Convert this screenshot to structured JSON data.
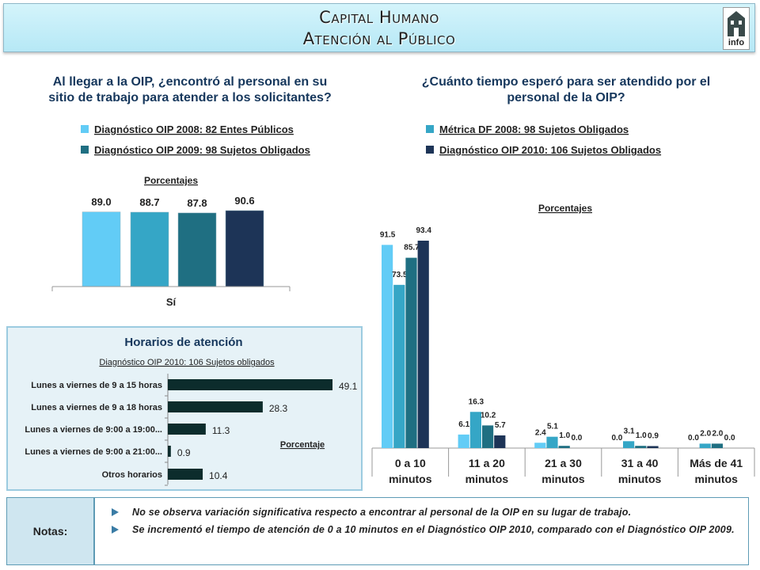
{
  "header": {
    "title_line1": "Capital Humano",
    "title_line2": "Atención al Público",
    "logo_text": "info"
  },
  "q1": {
    "line1": "Al llegar a la OIP, ¿encontró al personal en su",
    "line2": "sitio de trabajo para atender a los solicitantes?"
  },
  "q2": {
    "line1": "¿Cuánto tiempo esperó para ser atendido por el",
    "line2": "personal de la OIP?"
  },
  "notes": {
    "label": "Notas:",
    "items": [
      "No se observa variación significativa respecto a encontrar al personal de la OIP en su lugar de trabajo.",
      "Se incrementó el tiempo de atención de 0 a 10 minutos en el Diagnóstico OIP 2010, comparado con el Diagnóstico OIP 2009."
    ]
  },
  "colors": {
    "c1": "#62ccf6",
    "c2": "#35a6c6",
    "c3": "#1f6f82",
    "c4": "#1d3457",
    "hbar": "#0c2c2c"
  },
  "chart_data": [
    {
      "type": "bar",
      "subtitle": "Porcentajes",
      "categories": [
        "Sí"
      ],
      "legend": [
        "Diagnóstico OIP 2008: 82 Entes Públicos",
        "Diagnóstico OIP 2009: 98 Sujetos Obligados"
      ],
      "series": [
        {
          "values": [
            89.0
          ]
        },
        {
          "values": [
            88.7
          ]
        },
        {
          "values": [
            87.8
          ]
        },
        {
          "values": [
            90.6
          ]
        }
      ],
      "value_labels": [
        "89.0",
        "88.7",
        "87.8",
        "90.6"
      ],
      "ylim": [
        0,
        100
      ]
    },
    {
      "type": "bar",
      "orientation": "horizontal",
      "title": "Horarios de atención",
      "subtitle": "Diagnóstico OIP 2010: 106 Sujetos obligados",
      "annotation": "Porcentaje",
      "categories": [
        "Lunes a viernes de 9 a 15 horas",
        "Lunes a viernes de 9 a 18 horas",
        "Lunes a viernes de 9:00 a 19:00...",
        "Lunes a viernes de 9:00 a 21:00...",
        "Otros horarios"
      ],
      "values": [
        49.1,
        28.3,
        11.3,
        0.9,
        10.4
      ],
      "value_labels": [
        "49.1",
        "28.3",
        "11.3",
        "0.9",
        "10.4"
      ],
      "xlim": [
        0,
        55
      ]
    },
    {
      "type": "bar",
      "subtitle": "Porcentajes",
      "legend": [
        "Métrica DF 2008: 98 Sujetos Obligados",
        "Diagnóstico OIP 2010: 106 Sujetos Obligados"
      ],
      "categories": [
        "0 a 10 minutos",
        "11 a 20 minutos",
        "21 a 30 minutos",
        "31 a 40 minutos",
        "Más de 41 minutos"
      ],
      "series": [
        {
          "values": [
            91.5,
            6.1,
            2.4,
            0.0,
            0.0
          ]
        },
        {
          "values": [
            73.5,
            16.3,
            5.1,
            3.1,
            2.0
          ]
        },
        {
          "values": [
            85.7,
            10.2,
            1.0,
            1.0,
            2.0
          ]
        },
        {
          "values": [
            93.4,
            5.7,
            0.0,
            0.9,
            0.0
          ]
        }
      ],
      "value_labels": [
        [
          "91.5",
          "6.1",
          "2.4",
          "0.0",
          "0.0"
        ],
        [
          "73.5",
          "16.3",
          "5.1",
          "3.1",
          "2.0"
        ],
        [
          "85.7",
          "10.2",
          "1.0",
          "1.0",
          "2.0"
        ],
        [
          "93.4",
          "5.7",
          "0.0",
          "0.9",
          "0.0"
        ]
      ],
      "ylim": [
        0,
        100
      ]
    }
  ]
}
